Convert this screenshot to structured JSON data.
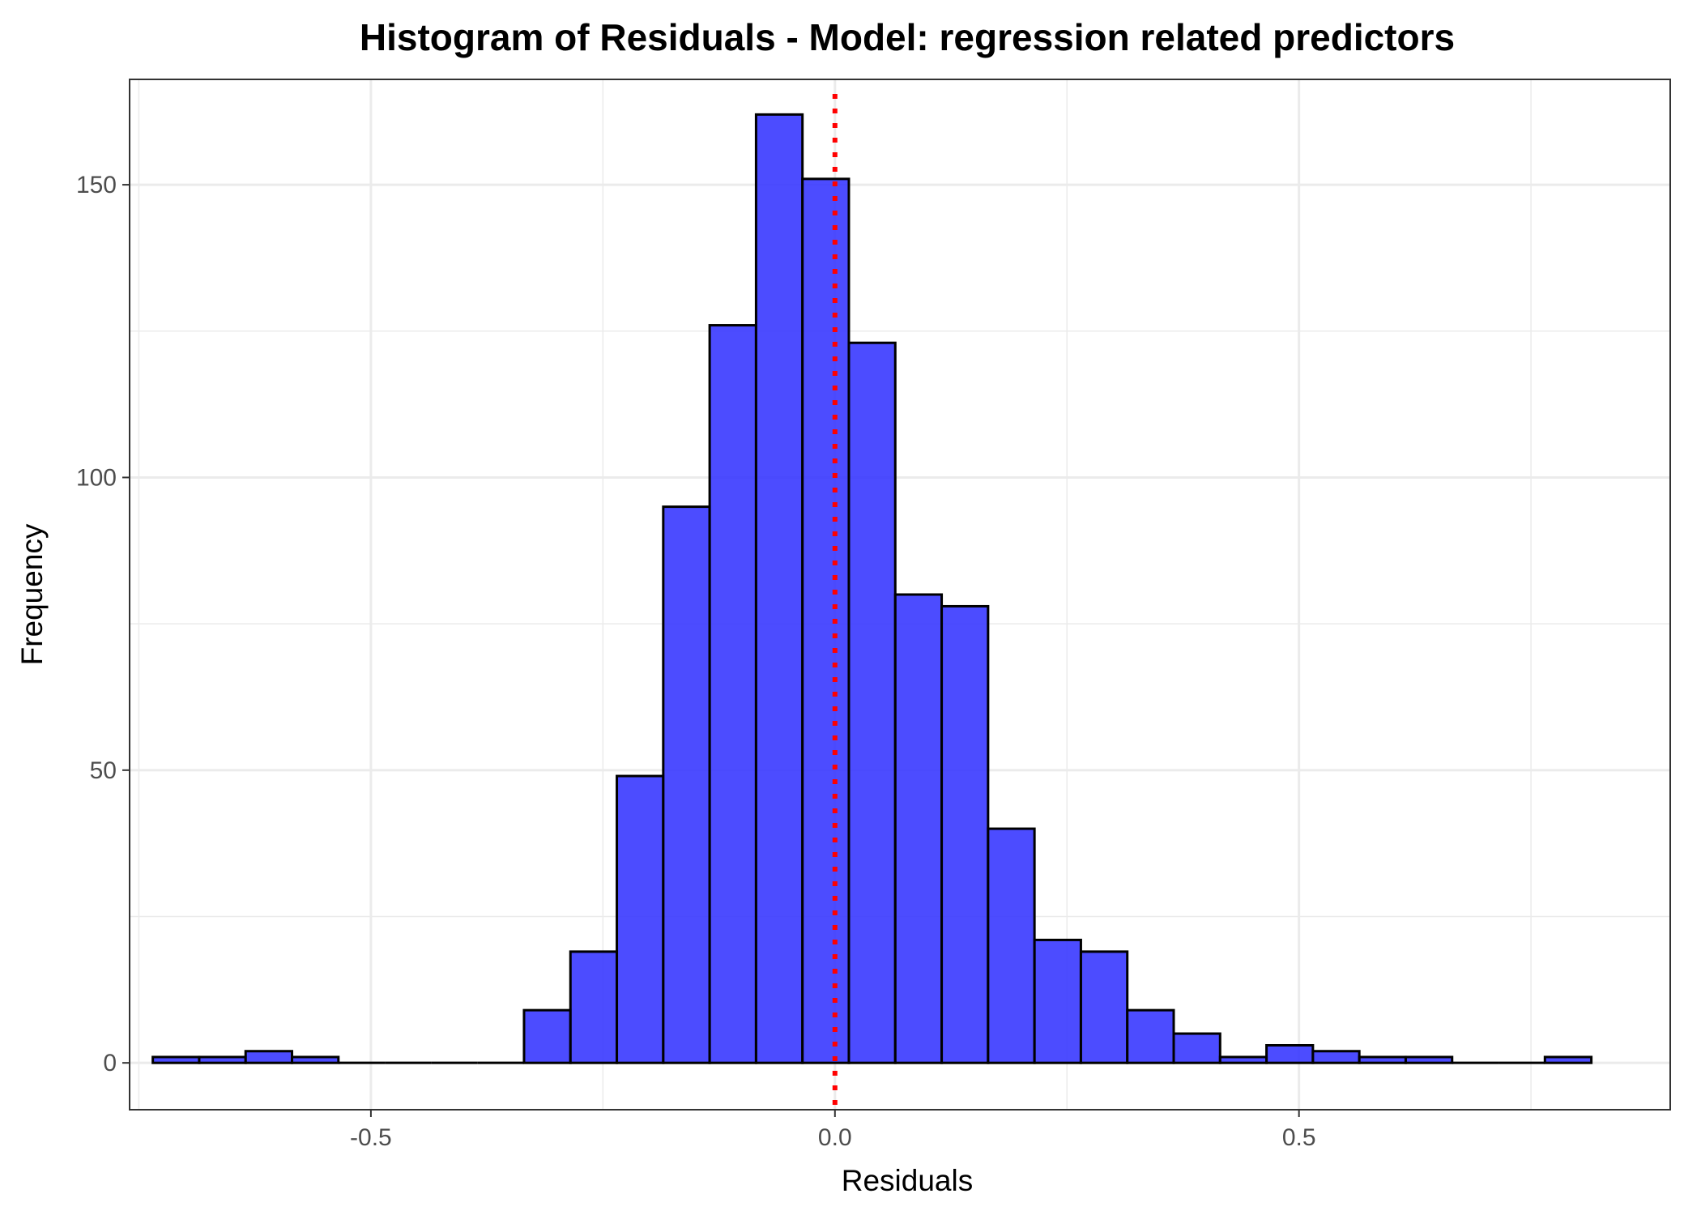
{
  "chart_data": {
    "type": "bar",
    "title": "Histogram of Residuals - Model: regression related predictors",
    "xlabel": "Residuals",
    "ylabel": "Frequency",
    "xlim": [
      -0.76,
      0.9
    ],
    "ylim": [
      -8,
      168
    ],
    "x_ticks": [
      -0.5,
      0.0,
      0.5
    ],
    "x_tick_labels": [
      "-0.5",
      "0.0",
      "0.5"
    ],
    "y_ticks": [
      0,
      50,
      100,
      150
    ],
    "y_tick_labels": [
      "0",
      "50",
      "100",
      "150"
    ],
    "grid": true,
    "bin_width": 0.05,
    "bins": [
      {
        "x0": -0.735,
        "x1": -0.685,
        "count": 1
      },
      {
        "x0": -0.685,
        "x1": -0.635,
        "count": 1
      },
      {
        "x0": -0.635,
        "x1": -0.585,
        "count": 2
      },
      {
        "x0": -0.585,
        "x1": -0.535,
        "count": 1
      },
      {
        "x0": -0.535,
        "x1": -0.485,
        "count": 0
      },
      {
        "x0": -0.485,
        "x1": -0.435,
        "count": 0
      },
      {
        "x0": -0.435,
        "x1": -0.385,
        "count": 0
      },
      {
        "x0": -0.385,
        "x1": -0.335,
        "count": 0
      },
      {
        "x0": -0.335,
        "x1": -0.285,
        "count": 9
      },
      {
        "x0": -0.285,
        "x1": -0.235,
        "count": 19
      },
      {
        "x0": -0.235,
        "x1": -0.185,
        "count": 49
      },
      {
        "x0": -0.185,
        "x1": -0.135,
        "count": 95
      },
      {
        "x0": -0.135,
        "x1": -0.085,
        "count": 126
      },
      {
        "x0": -0.085,
        "x1": -0.035,
        "count": 162
      },
      {
        "x0": -0.035,
        "x1": 0.015,
        "count": 151
      },
      {
        "x0": 0.015,
        "x1": 0.065,
        "count": 123
      },
      {
        "x0": 0.065,
        "x1": 0.115,
        "count": 80
      },
      {
        "x0": 0.115,
        "x1": 0.165,
        "count": 78
      },
      {
        "x0": 0.165,
        "x1": 0.215,
        "count": 40
      },
      {
        "x0": 0.215,
        "x1": 0.265,
        "count": 21
      },
      {
        "x0": 0.265,
        "x1": 0.315,
        "count": 19
      },
      {
        "x0": 0.315,
        "x1": 0.365,
        "count": 9
      },
      {
        "x0": 0.365,
        "x1": 0.415,
        "count": 5
      },
      {
        "x0": 0.415,
        "x1": 0.465,
        "count": 1
      },
      {
        "x0": 0.465,
        "x1": 0.515,
        "count": 3
      },
      {
        "x0": 0.515,
        "x1": 0.565,
        "count": 2
      },
      {
        "x0": 0.565,
        "x1": 0.615,
        "count": 1
      },
      {
        "x0": 0.615,
        "x1": 0.665,
        "count": 1
      },
      {
        "x0": 0.665,
        "x1": 0.715,
        "count": 0
      },
      {
        "x0": 0.715,
        "x1": 0.765,
        "count": 0
      },
      {
        "x0": 0.765,
        "x1": 0.815,
        "count": 1
      }
    ],
    "reference_line": {
      "x": 0.0,
      "style": "dotted",
      "color": "#ff0000"
    },
    "colors": {
      "bar_fill": "#3333ff",
      "bar_stroke": "#000000",
      "grid": "#ebebeb",
      "panel_border": "#333333"
    }
  }
}
